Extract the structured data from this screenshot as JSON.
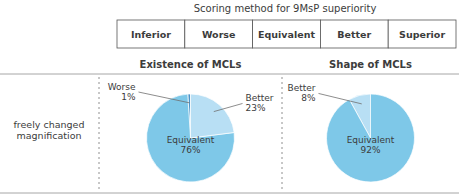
{
  "title": "Scoring method for 9MsP superiority",
  "annotations": {
    "table_labels": [
      "Inferior",
      "Worse",
      "Equivalent",
      "Better",
      "Superior"
    ],
    "row_label": "freely changed\nmagnification"
  },
  "chart_data": [
    {
      "type": "pie",
      "title": "Existence of MCLs",
      "categories": [
        "Worse",
        "Equivalent",
        "Better"
      ],
      "values": [
        1,
        76,
        23
      ],
      "value_labels": [
        "1%",
        "76%",
        "23%"
      ],
      "colors": [
        "#4d94c8",
        "#7ec8e8",
        "#b8dff4"
      ],
      "data_labels": true
    },
    {
      "type": "pie",
      "title": "Shape of MCLs",
      "categories": [
        "Better",
        "Equivalent"
      ],
      "values": [
        8,
        92
      ],
      "value_labels": [
        "8%",
        "92%"
      ],
      "colors": [
        "#b8dff4",
        "#7ec8e8"
      ],
      "data_labels": true
    }
  ]
}
